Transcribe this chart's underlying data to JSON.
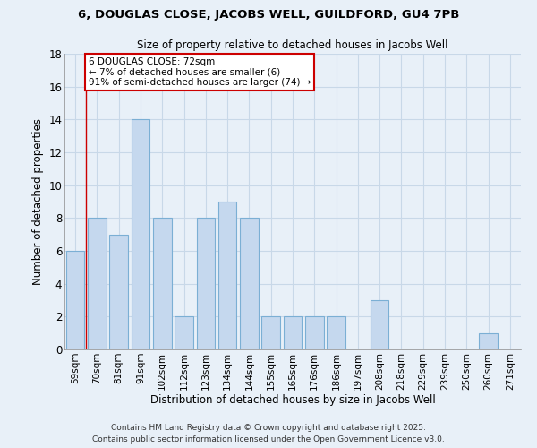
{
  "title1": "6, DOUGLAS CLOSE, JACOBS WELL, GUILDFORD, GU4 7PB",
  "title2": "Size of property relative to detached houses in Jacobs Well",
  "xlabel": "Distribution of detached houses by size in Jacobs Well",
  "ylabel": "Number of detached properties",
  "bin_labels": [
    "59sqm",
    "70sqm",
    "81sqm",
    "91sqm",
    "102sqm",
    "112sqm",
    "123sqm",
    "134sqm",
    "144sqm",
    "155sqm",
    "165sqm",
    "176sqm",
    "186sqm",
    "197sqm",
    "208sqm",
    "218sqm",
    "229sqm",
    "239sqm",
    "250sqm",
    "260sqm",
    "271sqm"
  ],
  "bar_values": [
    6,
    8,
    7,
    14,
    8,
    2,
    8,
    9,
    8,
    2,
    2,
    2,
    2,
    0,
    3,
    0,
    0,
    0,
    0,
    1,
    0
  ],
  "bar_color": "#c5d8ee",
  "bar_edge_color": "#7bafd4",
  "bg_color": "#e8f0f8",
  "grid_color": "#d0dcea",
  "red_line_x": 0.5,
  "annotation_text": "6 DOUGLAS CLOSE: 72sqm\n← 7% of detached houses are smaller (6)\n91% of semi-detached houses are larger (74) →",
  "annotation_box_color": "#ffffff",
  "annotation_box_edge": "#cc0000",
  "ylim": [
    0,
    18
  ],
  "yticks": [
    0,
    2,
    4,
    6,
    8,
    10,
    12,
    14,
    16,
    18
  ],
  "footer1": "Contains HM Land Registry data © Crown copyright and database right 2025.",
  "footer2": "Contains public sector information licensed under the Open Government Licence v3.0."
}
